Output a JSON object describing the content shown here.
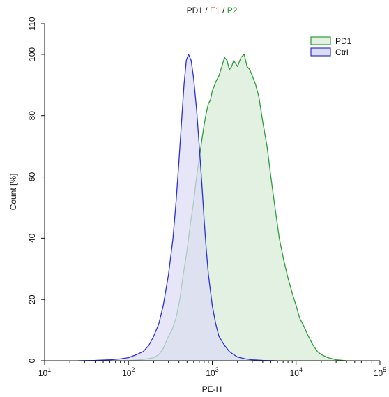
{
  "chart_data": {
    "type": "area",
    "title": {
      "parts": [
        {
          "text": "PD1",
          "color": "#111111"
        },
        {
          "text": " / ",
          "color": "#111111"
        },
        {
          "text": "E1",
          "color": "#e8202a"
        },
        {
          "text": " / ",
          "color": "#111111"
        },
        {
          "text": "P2",
          "color": "#2e9b3a"
        }
      ]
    },
    "xlabel": "PE-H",
    "ylabel": "Count [%]",
    "xscale": "log",
    "xlim": [
      10,
      100000
    ],
    "ylim": [
      0,
      110
    ],
    "x_ticks": [
      {
        "value": 10,
        "base": "10",
        "exp": "1"
      },
      {
        "value": 100,
        "base": "10",
        "exp": "2"
      },
      {
        "value": 1000,
        "base": "10",
        "exp": "3"
      },
      {
        "value": 10000,
        "base": "10",
        "exp": "4"
      },
      {
        "value": 100000,
        "base": "10",
        "exp": "5"
      }
    ],
    "y_ticks": [
      {
        "value": 0,
        "label": "0"
      },
      {
        "value": 20,
        "label": "20"
      },
      {
        "value": 40,
        "label": "40"
      },
      {
        "value": 60,
        "label": "60"
      },
      {
        "value": 80,
        "label": "80"
      },
      {
        "value": 100,
        "label": "100"
      },
      {
        "value": 110,
        "label": "110"
      }
    ],
    "grid": false,
    "legend_position": "top-right",
    "series": [
      {
        "name": "PD1",
        "stroke": "#2e9b3a",
        "fill": "#e3f1e3",
        "points": [
          [
            100,
            0
          ],
          [
            150,
            0.4
          ],
          [
            200,
            1
          ],
          [
            230,
            2
          ],
          [
            260,
            4
          ],
          [
            300,
            8
          ],
          [
            330,
            10
          ],
          [
            370,
            14
          ],
          [
            410,
            20
          ],
          [
            450,
            28
          ],
          [
            500,
            36
          ],
          [
            550,
            45
          ],
          [
            600,
            52
          ],
          [
            650,
            60
          ],
          [
            700,
            66
          ],
          [
            750,
            72
          ],
          [
            800,
            77
          ],
          [
            850,
            81
          ],
          [
            900,
            84
          ],
          [
            950,
            85
          ],
          [
            1000,
            88
          ],
          [
            1100,
            91
          ],
          [
            1200,
            93
          ],
          [
            1300,
            96
          ],
          [
            1400,
            99
          ],
          [
            1500,
            98
          ],
          [
            1600,
            95
          ],
          [
            1700,
            96
          ],
          [
            1800,
            98
          ],
          [
            1900,
            97
          ],
          [
            2000,
            96
          ],
          [
            2200,
            99
          ],
          [
            2400,
            100
          ],
          [
            2600,
            96
          ],
          [
            2800,
            95
          ],
          [
            3000,
            93
          ],
          [
            3300,
            90
          ],
          [
            3600,
            86
          ],
          [
            4000,
            78
          ],
          [
            4500,
            70
          ],
          [
            5000,
            60
          ],
          [
            5600,
            50
          ],
          [
            6300,
            40
          ],
          [
            7100,
            33
          ],
          [
            8000,
            27
          ],
          [
            9000,
            22
          ],
          [
            10000,
            18
          ],
          [
            11000,
            14
          ],
          [
            12500,
            11
          ],
          [
            14000,
            8
          ],
          [
            16000,
            5
          ],
          [
            18000,
            3
          ],
          [
            20000,
            2
          ],
          [
            24000,
            1
          ],
          [
            30000,
            0.3
          ],
          [
            40000,
            0
          ]
        ]
      },
      {
        "name": "Ctrl",
        "stroke": "#2b2fd8",
        "fill": "#dcdcf5",
        "points": [
          [
            25,
            0
          ],
          [
            40,
            0.1
          ],
          [
            60,
            0.3
          ],
          [
            80,
            0.6
          ],
          [
            100,
            1
          ],
          [
            125,
            2
          ],
          [
            150,
            3
          ],
          [
            175,
            5
          ],
          [
            200,
            8
          ],
          [
            230,
            12
          ],
          [
            260,
            18
          ],
          [
            300,
            28
          ],
          [
            340,
            40
          ],
          [
            370,
            52
          ],
          [
            400,
            65
          ],
          [
            430,
            78
          ],
          [
            460,
            90
          ],
          [
            490,
            98
          ],
          [
            520,
            100
          ],
          [
            560,
            98
          ],
          [
            600,
            92
          ],
          [
            650,
            82
          ],
          [
            700,
            70
          ],
          [
            750,
            58
          ],
          [
            800,
            46
          ],
          [
            850,
            36
          ],
          [
            900,
            28
          ],
          [
            1000,
            18
          ],
          [
            1100,
            12
          ],
          [
            1200,
            8
          ],
          [
            1400,
            5
          ],
          [
            1600,
            3
          ],
          [
            1800,
            2
          ],
          [
            2000,
            1.2
          ],
          [
            2500,
            0.6
          ],
          [
            3000,
            0.3
          ],
          [
            4000,
            0.1
          ],
          [
            6000,
            0
          ]
        ]
      }
    ]
  }
}
